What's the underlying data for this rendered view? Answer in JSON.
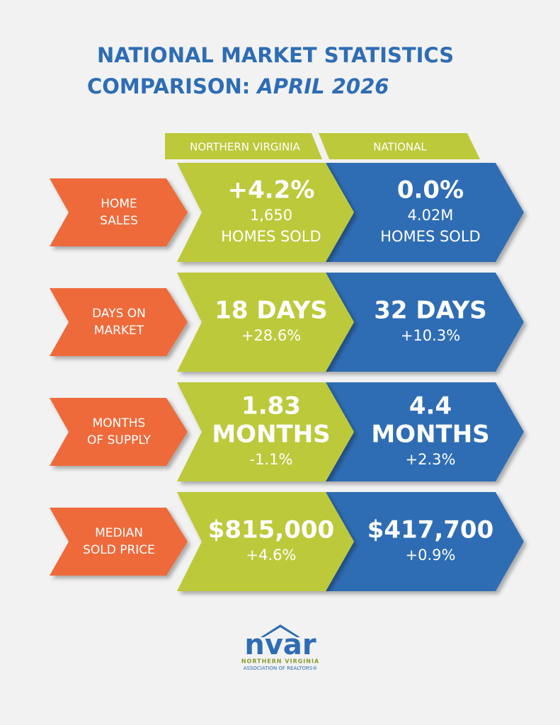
{
  "header": {
    "title_line1": "NATIONAL MARKET STATISTICS",
    "title_line2": "COMPARISON:",
    "title_period": "APRIL 2026"
  },
  "columns": [
    "NORTHERN VIRGINIA",
    "NATIONAL"
  ],
  "rows": [
    {
      "label": [
        "HOME",
        "SALES"
      ],
      "northern_virginia": {
        "headline": [
          "+4.2%"
        ],
        "detail": [
          "1,650",
          "HOMES SOLD"
        ]
      },
      "national": {
        "headline": [
          "0.0%"
        ],
        "detail": [
          "4.02M",
          "HOMES SOLD"
        ]
      }
    },
    {
      "label": [
        "DAYS ON",
        "MARKET"
      ],
      "northern_virginia": {
        "headline": [
          "18 DAYS"
        ],
        "detail": [
          "+28.6%"
        ]
      },
      "national": {
        "headline": [
          "32 DAYS"
        ],
        "detail": [
          "+10.3%"
        ]
      }
    },
    {
      "label": [
        "MONTHS",
        "OF SUPPLY"
      ],
      "northern_virginia": {
        "headline": [
          "1.83",
          "MONTHS"
        ],
        "detail": [
          "-1.1%"
        ]
      },
      "national": {
        "headline": [
          "4.4",
          "MONTHS"
        ],
        "detail": [
          "+2.3%"
        ]
      }
    },
    {
      "label": [
        "MEDIAN",
        "SOLD PRICE"
      ],
      "northern_virginia": {
        "headline": [
          "$815,000"
        ],
        "detail": [
          "+4.6%"
        ]
      },
      "national": {
        "headline": [
          "$417,700"
        ],
        "detail": [
          "+0.9%"
        ]
      }
    }
  ],
  "logo": {
    "mark": "nvar",
    "line1": "NORTHERN VIRGINIA",
    "line2": "ASSOCIATION OF REALTORS®"
  }
}
